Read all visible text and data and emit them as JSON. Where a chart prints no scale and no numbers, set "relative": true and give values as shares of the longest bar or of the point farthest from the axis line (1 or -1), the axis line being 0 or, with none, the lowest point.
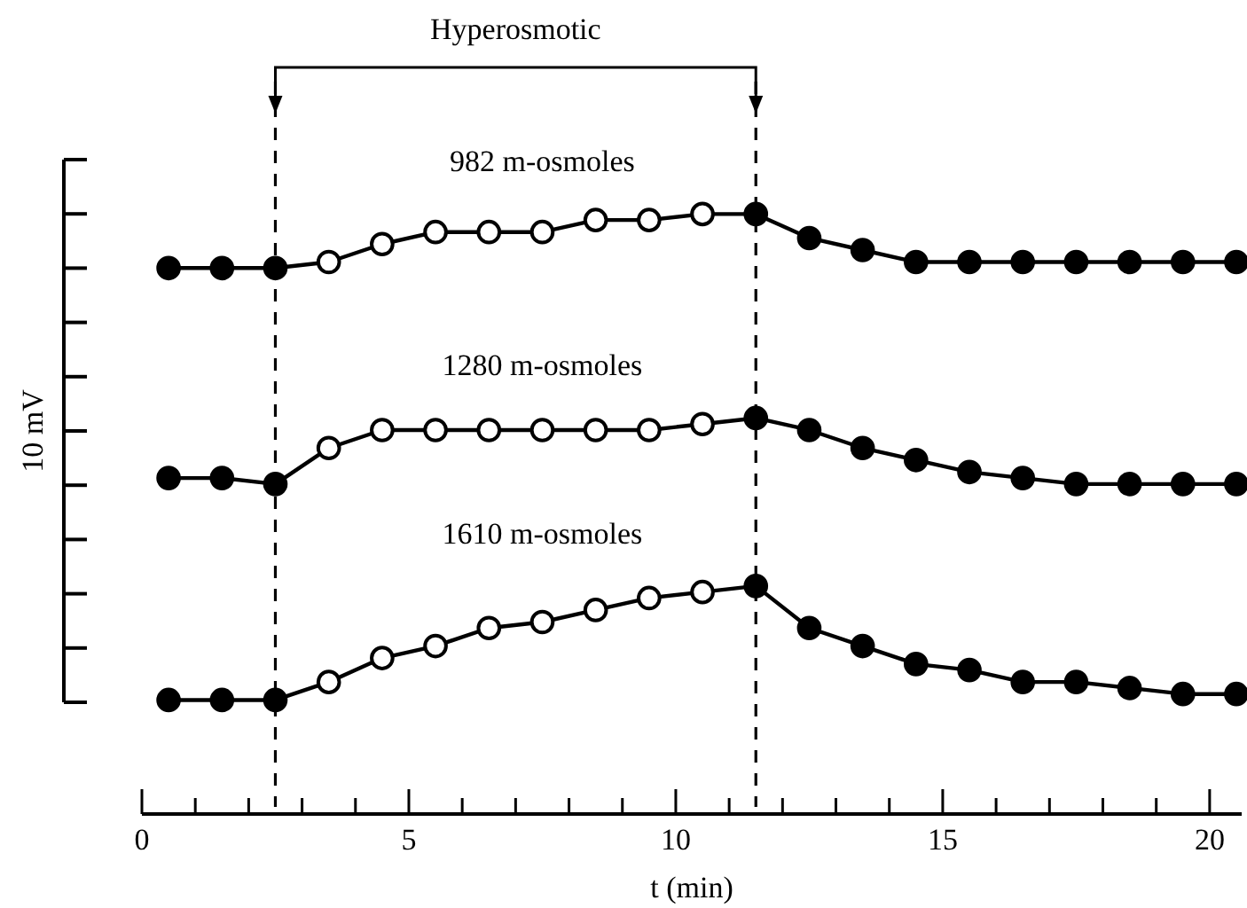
{
  "chart_data": {
    "type": "line",
    "relative": true,
    "xlabel": "t (min)",
    "ylabel": "10 mV",
    "annotations": [
      "Hyperosmotic"
    ],
    "x": [
      0.5,
      1.5,
      2.5,
      3.5,
      4.5,
      5.5,
      6.5,
      7.5,
      8.5,
      9.5,
      10.5,
      11.5,
      12.5,
      13.5,
      14.5,
      15.5,
      16.5,
      17.5,
      18.5,
      19.5,
      20.5
    ],
    "xlim": [
      0,
      20.6
    ],
    "xticks": [
      0,
      {
        "value": 1,
        "label": null
      },
      {
        "value": 2,
        "label": null
      },
      {
        "value": 3,
        "label": null
      },
      {
        "value": 4,
        "label": null
      },
      5,
      {
        "value": 6,
        "label": null
      },
      {
        "value": 7,
        "label": null
      },
      {
        "value": 8,
        "label": null
      },
      {
        "value": 9,
        "label": null
      },
      10,
      {
        "value": 11,
        "label": null
      },
      {
        "value": 12,
        "label": null
      },
      {
        "value": 13,
        "label": null
      },
      {
        "value": 14,
        "label": null
      },
      15,
      {
        "value": 16,
        "label": null
      },
      {
        "value": 17,
        "label": null
      },
      {
        "value": 18,
        "label": null
      },
      {
        "value": 19,
        "label": null
      },
      20
    ],
    "marker": "circle",
    "line_style": "solid",
    "ref_lines": [
      {
        "axis": "x",
        "value": 2.5,
        "line_style": "dashed",
        "color": "#000000"
      },
      {
        "axis": "x",
        "value": 11.5,
        "line_style": "dashed",
        "color": "#000000"
      }
    ],
    "series": [
      {
        "name": "982 m-osmoles",
        "color": "#000000",
        "values": [
          0.91,
          0.91,
          0.91,
          0.92,
          0.95,
          0.97,
          0.97,
          0.97,
          0.99,
          0.99,
          1.0,
          1.0,
          0.96,
          0.94,
          0.92,
          0.92,
          0.92,
          0.92,
          0.92,
          0.92,
          0.92
        ],
        "colors": [
          "#000000",
          "#000000",
          "#000000",
          "#ffffff",
          "#ffffff",
          "#ffffff",
          "#ffffff",
          "#ffffff",
          "#ffffff",
          "#ffffff",
          "#ffffff",
          "#000000",
          "#000000",
          "#000000",
          "#000000",
          "#000000",
          "#000000",
          "#000000",
          "#000000",
          "#000000",
          "#000000"
        ]
      },
      {
        "name": "1280 m-osmoles",
        "color": "#000000",
        "values": [
          0.56,
          0.56,
          0.55,
          0.61,
          0.64,
          0.64,
          0.64,
          0.64,
          0.64,
          0.64,
          0.65,
          0.66,
          0.64,
          0.61,
          0.59,
          0.57,
          0.56,
          0.55,
          0.55,
          0.55,
          0.55
        ],
        "colors": [
          "#000000",
          "#000000",
          "#000000",
          "#ffffff",
          "#ffffff",
          "#ffffff",
          "#ffffff",
          "#ffffff",
          "#ffffff",
          "#ffffff",
          "#ffffff",
          "#000000",
          "#000000",
          "#000000",
          "#000000",
          "#000000",
          "#000000",
          "#000000",
          "#000000",
          "#000000",
          "#000000"
        ]
      },
      {
        "name": "1610 m-osmoles",
        "color": "#000000",
        "values": [
          0.19,
          0.19,
          0.19,
          0.22,
          0.26,
          0.28,
          0.31,
          0.32,
          0.34,
          0.36,
          0.37,
          0.38,
          0.31,
          0.28,
          0.25,
          0.24,
          0.22,
          0.22,
          0.21,
          0.2,
          0.2
        ],
        "colors": [
          "#000000",
          "#000000",
          "#000000",
          "#ffffff",
          "#ffffff",
          "#ffffff",
          "#ffffff",
          "#ffffff",
          "#ffffff",
          "#ffffff",
          "#ffffff",
          "#000000",
          "#000000",
          "#000000",
          "#000000",
          "#000000",
          "#000000",
          "#000000",
          "#000000",
          "#000000",
          "#000000"
        ]
      }
    ]
  }
}
